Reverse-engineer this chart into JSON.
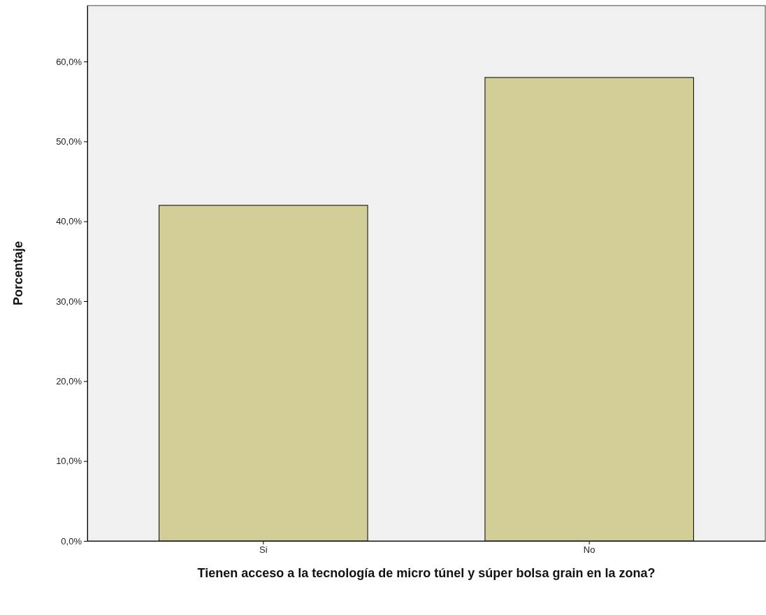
{
  "chart_data": {
    "type": "bar",
    "xlabel": "Tienen acceso a la tecnología de micro túnel y súper bolsa grain en la zona?",
    "ylabel": "Porcentaje",
    "categories": [
      "Si",
      "No"
    ],
    "series": [
      {
        "color": "#d3ce97",
        "values": [
          42.0,
          58.0
        ]
      }
    ],
    "ylim": [
      0,
      67
    ],
    "yticks": [
      {
        "value": 0,
        "label": "0,0%"
      },
      {
        "value": 10,
        "label": "10,0%"
      },
      {
        "value": 20,
        "label": "20,0%"
      },
      {
        "value": 30,
        "label": "30,0%"
      },
      {
        "value": 40,
        "label": "40,0%"
      },
      {
        "value": 50,
        "label": "50,0%"
      },
      {
        "value": 60,
        "label": "60,0%"
      }
    ],
    "grid": false
  }
}
